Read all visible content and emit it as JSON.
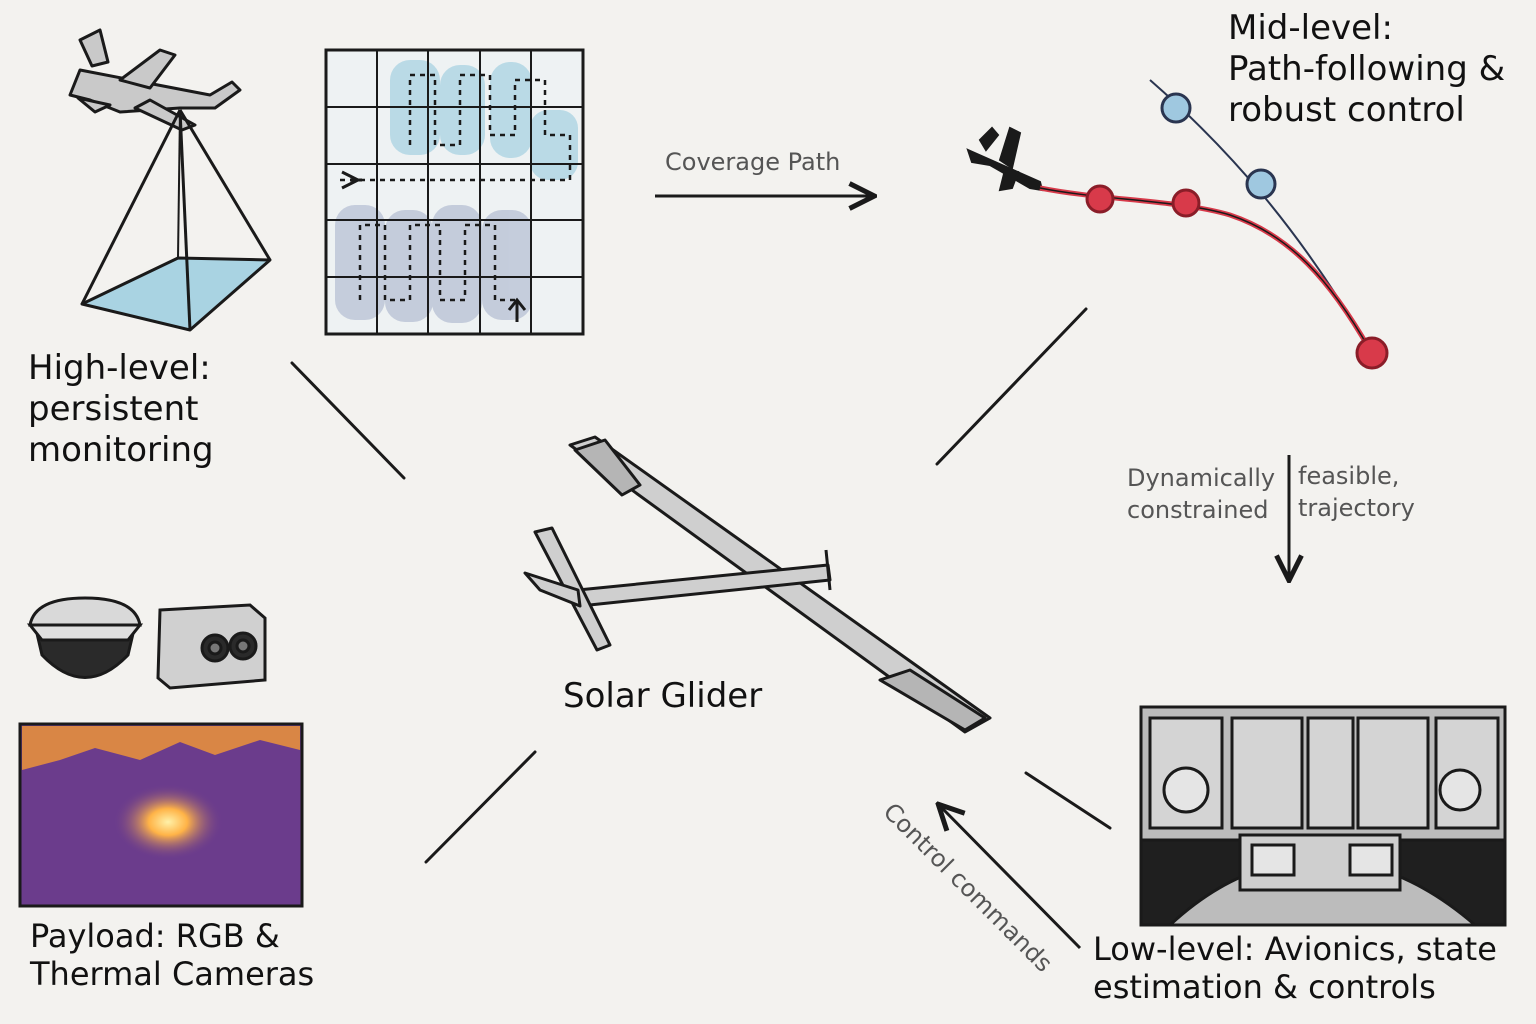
{
  "center": {
    "title": "Solar Glider"
  },
  "high_level": {
    "lines": [
      "High-level:",
      "persistent",
      "monitoring"
    ]
  },
  "mid_level": {
    "lines": [
      "Mid-level:",
      "Path-following &",
      "robust control"
    ]
  },
  "low_level": {
    "lines": [
      "Low-level: Avionics, state",
      "estimation & controls"
    ]
  },
  "payload": {
    "lines": [
      "Payload: RGB &",
      "Thermal Cameras"
    ]
  },
  "arrows": {
    "coverage_path": "Coverage Path",
    "trajectory_left": [
      "Dynamically",
      "constrained"
    ],
    "trajectory_right": [
      "feasible,",
      "trajectory"
    ],
    "control_commands": "Control commands"
  },
  "colors": {
    "ink": "#1a1a1a",
    "wing_fill": "#cfcfcf",
    "coverage_blue": "#a9d3e2",
    "coverage_grey": "#b7c0d4",
    "trajectory_red": "#d83a4a",
    "trajectory_blue": "#2a3550",
    "thermal_sky": "#d98645",
    "thermal_ground": "#6b3c8c",
    "thermal_hot": "#ffb347"
  },
  "icons": [
    "drone-icon",
    "camera-footprint-icon",
    "coverage-grid-icon",
    "small-aircraft-icon",
    "dome-camera-icon",
    "thermal-camera-icon",
    "thermal-image-icon",
    "cockpit-icon",
    "glider-icon"
  ]
}
